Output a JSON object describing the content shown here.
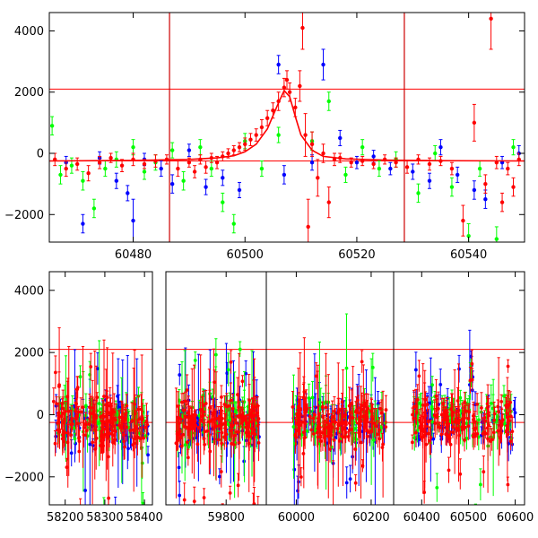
{
  "chart_data": [
    {
      "type": "scatter",
      "panel": "top",
      "xlim": [
        60465,
        60550
      ],
      "ylim": [
        -2900,
        4600
      ],
      "xticks": [
        60480,
        60500,
        60520,
        60540
      ],
      "yticks": [
        -2000,
        0,
        2000,
        4000
      ],
      "hlines": [
        2100,
        -250
      ],
      "vlines": [
        60486.5,
        60528.5
      ],
      "model_curve": {
        "color": "#ff0000",
        "x": [
          60465,
          60480,
          60490,
          60495,
          60498,
          60500,
          60502,
          60504,
          60506,
          60507,
          60508,
          60509,
          60510,
          60512,
          60514,
          60518,
          60525,
          60535,
          60550
        ],
        "y": [
          -250,
          -230,
          -200,
          -150,
          -80,
          50,
          300,
          800,
          1650,
          2050,
          1850,
          1200,
          600,
          100,
          -100,
          -180,
          -220,
          -240,
          -250
        ]
      },
      "series": [
        {
          "color": "#ff0000",
          "points": [
            {
              "x": 60466,
              "y": -200,
              "e": 200
            },
            {
              "x": 60468,
              "y": -500,
              "e": 250
            },
            {
              "x": 60470,
              "y": -350,
              "e": 200
            },
            {
              "x": 60472,
              "y": -650,
              "e": 250
            },
            {
              "x": 60474,
              "y": -300,
              "e": 200
            },
            {
              "x": 60476,
              "y": -150,
              "e": 150
            },
            {
              "x": 60478,
              "y": -400,
              "e": 200
            },
            {
              "x": 60480,
              "y": -200,
              "e": 200
            },
            {
              "x": 60482,
              "y": -350,
              "e": 150
            },
            {
              "x": 60484,
              "y": -250,
              "e": 200
            },
            {
              "x": 60486,
              "y": -200,
              "e": 150
            },
            {
              "x": 60488,
              "y": -500,
              "e": 250
            },
            {
              "x": 60490,
              "y": -300,
              "e": 150
            },
            {
              "x": 60491,
              "y": -600,
              "e": 200
            },
            {
              "x": 60492,
              "y": -200,
              "e": 150
            },
            {
              "x": 60493,
              "y": -450,
              "e": 200
            },
            {
              "x": 60494,
              "y": -150,
              "e": 150
            },
            {
              "x": 60495,
              "y": -300,
              "e": 200
            },
            {
              "x": 60496,
              "y": -100,
              "e": 150
            },
            {
              "x": 60497,
              "y": 0,
              "e": 150
            },
            {
              "x": 60498,
              "y": 100,
              "e": 150
            },
            {
              "x": 60499,
              "y": 200,
              "e": 150
            },
            {
              "x": 60500,
              "y": 300,
              "e": 200
            },
            {
              "x": 60501,
              "y": 450,
              "e": 200
            },
            {
              "x": 60502,
              "y": 600,
              "e": 200
            },
            {
              "x": 60503,
              "y": 850,
              "e": 250
            },
            {
              "x": 60504,
              "y": 1150,
              "e": 250
            },
            {
              "x": 60505,
              "y": 1400,
              "e": 250
            },
            {
              "x": 60506,
              "y": 1700,
              "e": 300
            },
            {
              "x": 60507,
              "y": 2150,
              "e": 300
            },
            {
              "x": 60507.5,
              "y": 2400,
              "e": 300
            },
            {
              "x": 60508,
              "y": 2000,
              "e": 300
            },
            {
              "x": 60509,
              "y": 1500,
              "e": 300
            },
            {
              "x": 60509.8,
              "y": 2200,
              "e": 500
            },
            {
              "x": 60510.3,
              "y": 4100,
              "e": 700
            },
            {
              "x": 60510.8,
              "y": 600,
              "e": 700
            },
            {
              "x": 60511.3,
              "y": -2400,
              "e": 900
            },
            {
              "x": 60512,
              "y": 300,
              "e": 400
            },
            {
              "x": 60513,
              "y": -800,
              "e": 600
            },
            {
              "x": 60514,
              "y": 0,
              "e": 300
            },
            {
              "x": 60515,
              "y": -1600,
              "e": 500
            },
            {
              "x": 60516,
              "y": -200,
              "e": 200
            },
            {
              "x": 60517,
              "y": -150,
              "e": 150
            },
            {
              "x": 60519,
              "y": -300,
              "e": 150
            },
            {
              "x": 60521,
              "y": -250,
              "e": 150
            },
            {
              "x": 60523,
              "y": -350,
              "e": 150
            },
            {
              "x": 60525,
              "y": -200,
              "e": 150
            },
            {
              "x": 60527,
              "y": -300,
              "e": 150
            },
            {
              "x": 60529,
              "y": -450,
              "e": 200
            },
            {
              "x": 60531,
              "y": -200,
              "e": 150
            },
            {
              "x": 60533,
              "y": -350,
              "e": 200
            },
            {
              "x": 60535,
              "y": -250,
              "e": 150
            },
            {
              "x": 60537,
              "y": -500,
              "e": 200
            },
            {
              "x": 60539,
              "y": -2200,
              "e": 500
            },
            {
              "x": 60541,
              "y": 1000,
              "e": 600
            },
            {
              "x": 60543,
              "y": -1000,
              "e": 300
            },
            {
              "x": 60545,
              "y": -300,
              "e": 200
            },
            {
              "x": 60546,
              "y": -1600,
              "e": 300
            },
            {
              "x": 60547,
              "y": -500,
              "e": 200
            },
            {
              "x": 60548,
              "y": -1100,
              "e": 300
            },
            {
              "x": 60549,
              "y": -200,
              "e": 200
            },
            {
              "x": 60544,
              "y": 4400,
              "e": 1000
            }
          ]
        },
        {
          "color": "#00ff00",
          "points": [
            {
              "x": 60465.5,
              "y": 900,
              "e": 300
            },
            {
              "x": 60467,
              "y": -700,
              "e": 300
            },
            {
              "x": 60469,
              "y": -400,
              "e": 250
            },
            {
              "x": 60471,
              "y": -900,
              "e": 300
            },
            {
              "x": 60473,
              "y": -1800,
              "e": 300
            },
            {
              "x": 60475,
              "y": -500,
              "e": 250
            },
            {
              "x": 60477,
              "y": -200,
              "e": 250
            },
            {
              "x": 60480,
              "y": 200,
              "e": 250
            },
            {
              "x": 60482,
              "y": -600,
              "e": 250
            },
            {
              "x": 60484,
              "y": -300,
              "e": 250
            },
            {
              "x": 60487,
              "y": 100,
              "e": 250
            },
            {
              "x": 60489,
              "y": -900,
              "e": 300
            },
            {
              "x": 60492,
              "y": 200,
              "e": 250
            },
            {
              "x": 60494,
              "y": -500,
              "e": 250
            },
            {
              "x": 60496,
              "y": -1600,
              "e": 300
            },
            {
              "x": 60498,
              "y": -2300,
              "e": 300
            },
            {
              "x": 60500,
              "y": 400,
              "e": 250
            },
            {
              "x": 60503,
              "y": -500,
              "e": 250
            },
            {
              "x": 60506,
              "y": 600,
              "e": 250
            },
            {
              "x": 60512,
              "y": 400,
              "e": 300
            },
            {
              "x": 60515,
              "y": 1700,
              "e": 300
            },
            {
              "x": 60518,
              "y": -700,
              "e": 250
            },
            {
              "x": 60521,
              "y": 200,
              "e": 250
            },
            {
              "x": 60524,
              "y": -500,
              "e": 250
            },
            {
              "x": 60527,
              "y": -200,
              "e": 250
            },
            {
              "x": 60531,
              "y": -1300,
              "e": 300
            },
            {
              "x": 60534,
              "y": 0,
              "e": 250
            },
            {
              "x": 60537,
              "y": -1100,
              "e": 300
            },
            {
              "x": 60540,
              "y": -2700,
              "e": 400
            },
            {
              "x": 60542,
              "y": -500,
              "e": 250
            },
            {
              "x": 60545,
              "y": -2800,
              "e": 400
            },
            {
              "x": 60548,
              "y": 200,
              "e": 250
            }
          ]
        },
        {
          "color": "#0000ff",
          "points": [
            {
              "x": 60468,
              "y": -300,
              "e": 200
            },
            {
              "x": 60471,
              "y": -2300,
              "e": 300
            },
            {
              "x": 60474,
              "y": -150,
              "e": 200
            },
            {
              "x": 60477,
              "y": -900,
              "e": 250
            },
            {
              "x": 60479,
              "y": -1300,
              "e": 250
            },
            {
              "x": 60480,
              "y": -2200,
              "e": 700
            },
            {
              "x": 60482,
              "y": -200,
              "e": 200
            },
            {
              "x": 60485,
              "y": -500,
              "e": 250
            },
            {
              "x": 60487,
              "y": -1000,
              "e": 300
            },
            {
              "x": 60490,
              "y": 100,
              "e": 200
            },
            {
              "x": 60493,
              "y": -1100,
              "e": 250
            },
            {
              "x": 60496,
              "y": -800,
              "e": 250
            },
            {
              "x": 60499,
              "y": -1200,
              "e": 250
            },
            {
              "x": 60506,
              "y": 2900,
              "e": 300
            },
            {
              "x": 60507,
              "y": -700,
              "e": 300
            },
            {
              "x": 60512,
              "y": -300,
              "e": 250
            },
            {
              "x": 60514,
              "y": 2900,
              "e": 500
            },
            {
              "x": 60517,
              "y": 500,
              "e": 250
            },
            {
              "x": 60520,
              "y": -300,
              "e": 200
            },
            {
              "x": 60523,
              "y": -100,
              "e": 200
            },
            {
              "x": 60526,
              "y": -500,
              "e": 200
            },
            {
              "x": 60530,
              "y": -600,
              "e": 250
            },
            {
              "x": 60533,
              "y": -900,
              "e": 250
            },
            {
              "x": 60535,
              "y": 200,
              "e": 250
            },
            {
              "x": 60538,
              "y": -700,
              "e": 250
            },
            {
              "x": 60541,
              "y": -1200,
              "e": 300
            },
            {
              "x": 60543,
              "y": -1500,
              "e": 300
            },
            {
              "x": 60546,
              "y": -300,
              "e": 200
            },
            {
              "x": 60549,
              "y": 0,
              "e": 250
            }
          ]
        }
      ]
    },
    {
      "type": "scatter",
      "panel": "bottom",
      "segments": [
        {
          "xlim": [
            58160,
            58420
          ],
          "xticks": [
            58200,
            58300,
            58400
          ],
          "start": 58170,
          "end": 58410,
          "seed": 11
        },
        {
          "xlim": [
            59620,
            59920
          ],
          "xticks": [
            59800
          ],
          "start": 59650,
          "end": 59900,
          "seed": 23
        },
        {
          "xlim": [
            59920,
            60260
          ],
          "xticks": [
            60000,
            60200
          ],
          "start": 59990,
          "end": 60240,
          "seed": 37
        },
        {
          "xlim": [
            60340,
            60620
          ],
          "xticks": [
            60400,
            60500,
            60600
          ],
          "start": 60380,
          "end": 60600,
          "seed": 51,
          "peak": 60506
        }
      ],
      "ylim": [
        -2900,
        4600
      ],
      "yticks": [
        -2000,
        0,
        2000,
        4000
      ],
      "hlines": [
        2100,
        -250
      ],
      "series_colors": [
        "#0000ff",
        "#00ff00",
        "#ff0000"
      ]
    }
  ]
}
